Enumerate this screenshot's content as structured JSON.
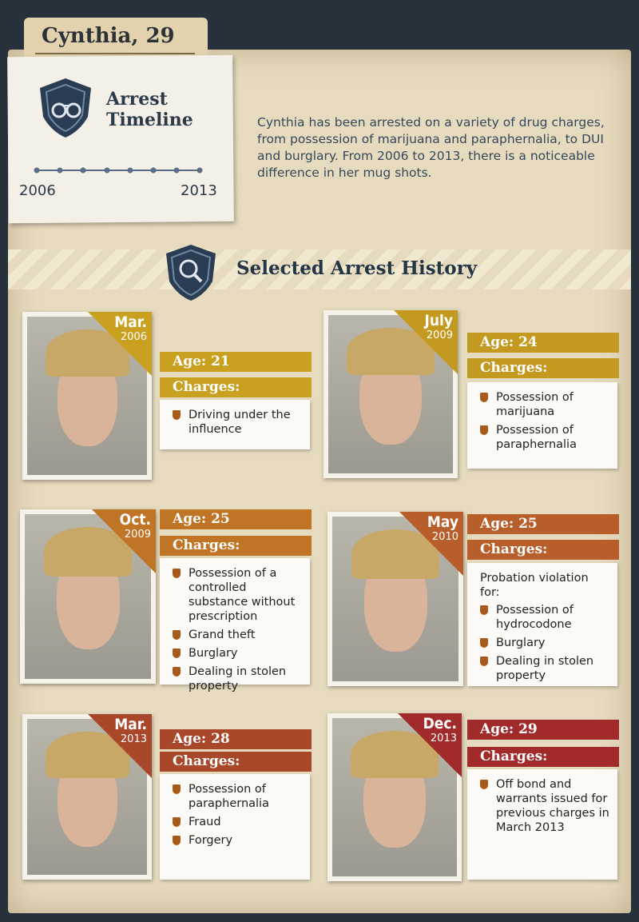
{
  "header": {
    "title": "Cynthia, 29"
  },
  "timeline": {
    "heading": "Arrest Timeline",
    "start_year": "2006",
    "end_year": "2013",
    "description": "Cynthia has been arrested on a variety of drug charges, from possession of marijuana and paraphernalia, to DUI and burglary. From 2006 to 2013, there is a noticeable difference in her mug shots."
  },
  "section": {
    "title": "Selected Arrest History"
  },
  "arrests": [
    {
      "month": "Mar.",
      "year": "2006",
      "age": "Age: 21",
      "charges_label": "Charges:",
      "charges": [
        "Driving under the influence"
      ]
    },
    {
      "month": "July",
      "year": "2009",
      "age": "Age: 24",
      "charges_label": "Charges:",
      "charges": [
        "Possession of marijuana",
        "Possession of paraphernalia"
      ]
    },
    {
      "month": "Oct.",
      "year": "2009",
      "age": "Age: 25",
      "charges_label": "Charges:",
      "charges": [
        "Possession of a controlled substance without prescription",
        "Grand theft",
        "Burglary",
        "Dealing in stolen property"
      ]
    },
    {
      "month": "May",
      "year": "2010",
      "age": "Age: 25",
      "charges_label": "Charges:",
      "intro": "Probation violation for:",
      "charges": [
        "Possession of hydrocodone",
        "Burglary",
        "Dealing in stolen property"
      ]
    },
    {
      "month": "Mar.",
      "year": "2013",
      "age": "Age: 28",
      "charges_label": "Charges:",
      "charges": [
        "Possession of paraphernalia",
        "Fraud",
        "Forgery"
      ]
    },
    {
      "month": "Dec.",
      "year": "2013",
      "age": "Age: 29",
      "charges_label": "Charges:",
      "charges": [
        "Off bond and warrants issued for previous charges in March 2013"
      ]
    }
  ]
}
